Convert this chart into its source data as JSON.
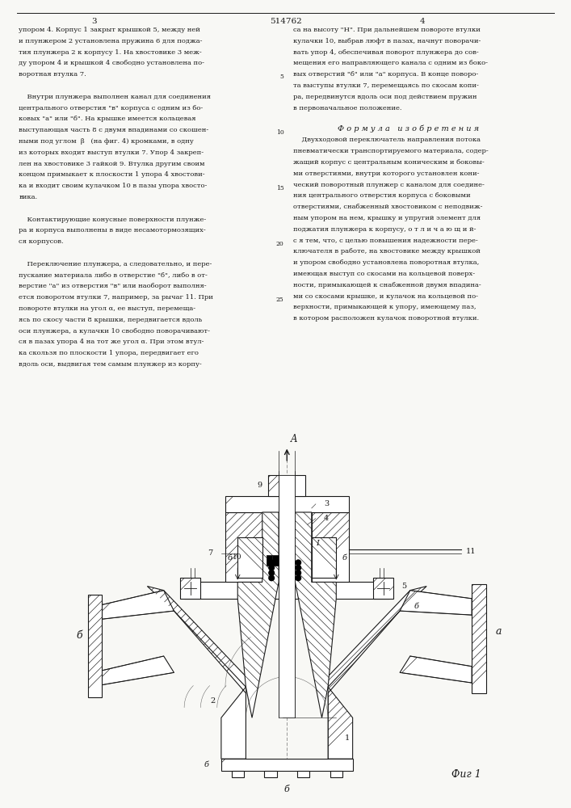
{
  "page_width": 7.07,
  "page_height": 10.0,
  "bg_color": "#f8f8f5",
  "text_color": "#1a1a1a",
  "patent_number": "514762",
  "page_numbers": [
    "3",
    "4"
  ],
  "col1_text": [
    "упором 4. Корпус 1 закрыт крышкой 5, между ней",
    "и плунжером 2 установлена пружина 6 для поджа-",
    "тия плунжера 2 к корпусу 1. На хвостовике 3 меж-",
    "ду упором 4 и крышкой 4 свободно установлена по-",
    "воротная втулка 7.",
    "",
    "    Внутри плунжера выполнен канал для соединения",
    "центрального отверстия \"в\" корпуса с одним из бо-",
    "ковых \"а\" или \"б\". На крышке имеется кольцевая",
    "выступающая часть 8 с двумя впадинами со скошен-",
    "ными под углом  β   (на фиг. 4) кромками, в одну",
    "из которых входит выступ втулки 7. Упор 4 закреп-",
    "лен на хвостовике 3 гайкой 9. Втулка другим своим",
    "концом примыкает к плоскости 1 упора 4 хвостови-",
    "ка и входит своим кулачком 10 в пазы упора хвосто-",
    "вика.",
    "",
    "    Контактирующие конусные поверхности плунже-",
    "ра и корпуса выполнены в виде несамотормозящих-",
    "ся корпусов.",
    "",
    "    Переключение плунжера, а следовательно, и пере-",
    "пускание материала либо в отверстие \"б\", либо в от-",
    "верстие \"а\" из отверстия \"в\" или наоборот выполня-",
    "ется поворотом втулки 7, например, за рычаг 11. При",
    "повороте втулки на угол α, ее выступ, перемеща-",
    "ясь по скосу части 8 крышки, передвигается вдоль",
    "оси плунжера, а кулачки 10 свободно поворачивают-",
    "ся в пазах упора 4 на тот же угол α. При этом втул-",
    "ка скользя по плоскости 1 упора, передвигает его",
    "вдоль оси, выдвигая тем самым плунжер из корпу-"
  ],
  "col2_text_top": [
    "са на высоту \"Н\". При дальнейшем повороте втулки",
    "кулачки 10, выбрав люфт в пазах, начнут поворачи-",
    "вать упор 4, обеспечивая поворот плунжера до сов-",
    "мещения его направляющего канала с одним из боко-",
    "вых отверстий \"б\" или \"а\" корпуса. В конце поворо-",
    "та выступы втулки 7, перемещаясь по скосам копи-",
    "ра, передвинутся вдоль оси под действием пружин",
    "в первоначальное положение."
  ],
  "formula_title": "Ф о р м у л а   и з о б р е т е н и я",
  "formula_text": [
    "    Двухходовой переключатель направления потока",
    "пневматически транспортируемого материала, содер-",
    "жащий корпус с центральным коническим и боковы-",
    "ми отверстиями, внутри которого установлен кони-",
    "ческий поворотный плунжер с каналом для соедине-",
    "ния центрального отверстия корпуса с боковыми",
    "отверстиями, снабженный хвостовиком с неподвиж-",
    "ным упором на нем, крышку и упругий элемент для",
    "поджатия плунжера к корпусу, о т л и ч а ю щ и й-",
    "с я тем, что, с целью повышения надежности пере-",
    "ключателя в работе, на хвостовике между крышкой",
    "и упором свободно установлена поворотная втулка,",
    "имеющая выступ со скосами на кольцевой поверх-",
    "ности, примыкающей к снабженной двумя впадина-",
    "ми со скосами крышке, и кулачок на кольцевой по-",
    "верхности, примыкающей к упору, имеющему паз,",
    "в котором расположен кулачок поворотной втулки."
  ],
  "fig_caption": "Фиг 1",
  "line_numbers": [
    "5",
    "10",
    "15",
    "20",
    "25"
  ]
}
